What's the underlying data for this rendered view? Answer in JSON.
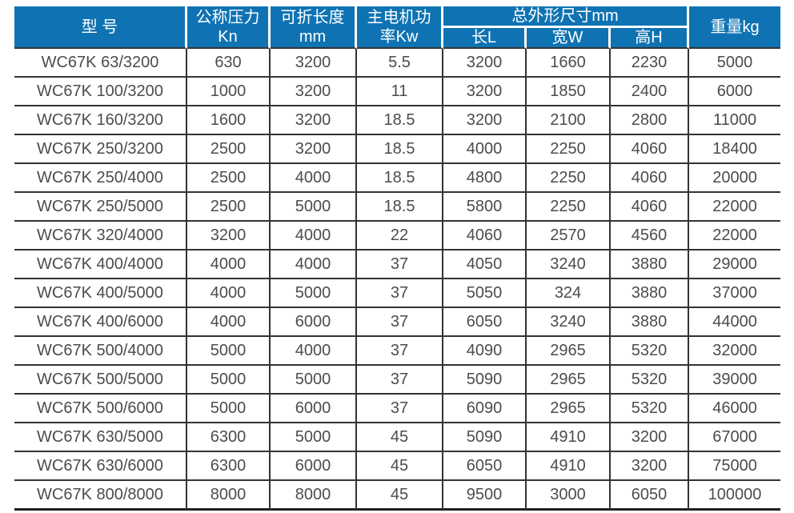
{
  "colors": {
    "header_background": "#0f73b3",
    "header_text": "#ffffff",
    "grid_line": "#333333",
    "data_text": "#4c4c4c",
    "page_background": "#ffffff"
  },
  "table": {
    "header": {
      "model": "型 号",
      "nominal_pressure_line1": "公称压力",
      "nominal_pressure_line2": "Kn",
      "fold_length_line1": "可折长度",
      "fold_length_line2": "mm",
      "motor_power_line1": "主电机功",
      "motor_power_line2": "率Kw",
      "overall_dims_group": "总外形尺寸mm",
      "dim_length": "长L",
      "dim_width": "宽W",
      "dim_height": "高H",
      "weight": "重量kg"
    },
    "rows": [
      [
        "WC67K 63/3200",
        "630",
        "3200",
        "5.5",
        "3200",
        "1660",
        "2230",
        "5000"
      ],
      [
        "WC67K 100/3200",
        "1000",
        "3200",
        "11",
        "3200",
        "1850",
        "2400",
        "6000"
      ],
      [
        "WC67K 160/3200",
        "1600",
        "3200",
        "18.5",
        "3200",
        "2100",
        "2800",
        "11000"
      ],
      [
        "WC67K 250/3200",
        "2500",
        "3200",
        "18.5",
        "4000",
        "2250",
        "4060",
        "18400"
      ],
      [
        "WC67K 250/4000",
        "2500",
        "4000",
        "18.5",
        "4800",
        "2250",
        "4060",
        "20000"
      ],
      [
        "WC67K 250/5000",
        "2500",
        "5000",
        "18.5",
        "5800",
        "2250",
        "4060",
        "22000"
      ],
      [
        "WC67K 320/4000",
        "3200",
        "4000",
        "22",
        "4060",
        "2570",
        "4560",
        "22000"
      ],
      [
        "WC67K 400/4000",
        "4000",
        "4000",
        "37",
        "4050",
        "3240",
        "3880",
        "29000"
      ],
      [
        "WC67K 400/5000",
        "4000",
        "5000",
        "37",
        "5050",
        "324",
        "3880",
        "37000"
      ],
      [
        "WC67K 400/6000",
        "4000",
        "6000",
        "37",
        "6050",
        "3240",
        "3880",
        "44000"
      ],
      [
        "WC67K 500/4000",
        "5000",
        "4000",
        "37",
        "4090",
        "2965",
        "5320",
        "32000"
      ],
      [
        "WC67K 500/5000",
        "5000",
        "5000",
        "37",
        "5090",
        "2965",
        "5320",
        "39000"
      ],
      [
        "WC67K 500/6000",
        "5000",
        "6000",
        "37",
        "6090",
        "2965",
        "5320",
        "46000"
      ],
      [
        "WC67K 630/5000",
        "6300",
        "5000",
        "45",
        "5090",
        "4910",
        "3200",
        "67000"
      ],
      [
        "WC67K 630/6000",
        "6300",
        "6000",
        "45",
        "6050",
        "4910",
        "3200",
        "75000"
      ],
      [
        "WC67K 800/8000",
        "8000",
        "8000",
        "45",
        "9500",
        "3000",
        "6050",
        "100000"
      ]
    ]
  }
}
